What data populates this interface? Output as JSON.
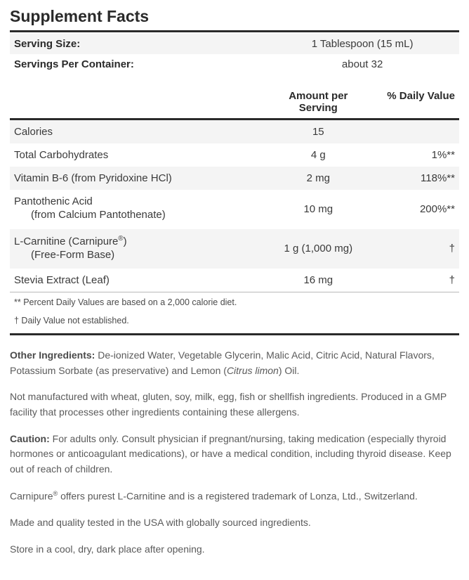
{
  "title": "Supplement Facts",
  "serving": {
    "size_label": "Serving Size:",
    "size_value": "1 Tablespoon (15 mL)",
    "per_label": "Servings Per Container:",
    "per_value": "about 32"
  },
  "columns": {
    "amount": "Amount per Serving",
    "dv": "% Daily Value"
  },
  "rows": [
    {
      "name": "Calories",
      "sub": "",
      "amount": "15",
      "dv": "",
      "alt": true
    },
    {
      "name": "Total Carbohydrates",
      "sub": "",
      "amount": "4 g",
      "dv": "1%**",
      "alt": false
    },
    {
      "name": "Vitamin B-6 (from Pyridoxine HCl)",
      "sub": "",
      "amount": "2 mg",
      "dv": "118%**",
      "alt": true
    },
    {
      "name": "Pantothenic Acid",
      "sub": "(from Calcium Pantothenate)",
      "amount": "10 mg",
      "dv": "200%**",
      "alt": false
    },
    {
      "name": "L-Carnitine (Carnipure®)",
      "sub": "(Free-Form Base)",
      "amount": "1 g (1,000 mg)",
      "dv": "†",
      "alt": true
    },
    {
      "name": "Stevia Extract (Leaf)",
      "sub": "",
      "amount": "16 mg",
      "dv": "†",
      "alt": false
    }
  ],
  "footnotes": {
    "a": "** Percent Daily Values are based on a 2,000 calorie diet.",
    "b": "† Daily Value not established."
  },
  "paragraphs": {
    "other_label": "Other Ingredients:",
    "other_text": " De-ionized Water, Vegetable Glycerin, Malic Acid, Citric Acid, Natural Flavors, Potassium Sorbate (as preservative) and Lemon (",
    "other_italic": "Citrus limon",
    "other_tail": ") Oil.",
    "allergen": "Not manufactured with wheat, gluten, soy, milk, egg, fish or shellfish ingredients. Produced in a GMP facility that processes other ingredients containing these allergens.",
    "caution_label": "Caution:",
    "caution_text": " For adults only. Consult physician if pregnant/nursing, taking medication (especially thyroid hormones or anticoagulant medications), or have a medical condition, including thyroid disease. Keep out of reach of children.",
    "trademark_pre": "Carnipure",
    "trademark_sup": "®",
    "trademark_post": " offers purest L-Carnitine and is a registered trademark of Lonza, Ltd., Switzerland.",
    "made": "Made and quality tested in the USA with globally sourced ingredients.",
    "store": "Store in a cool, dry, dark place after opening."
  }
}
